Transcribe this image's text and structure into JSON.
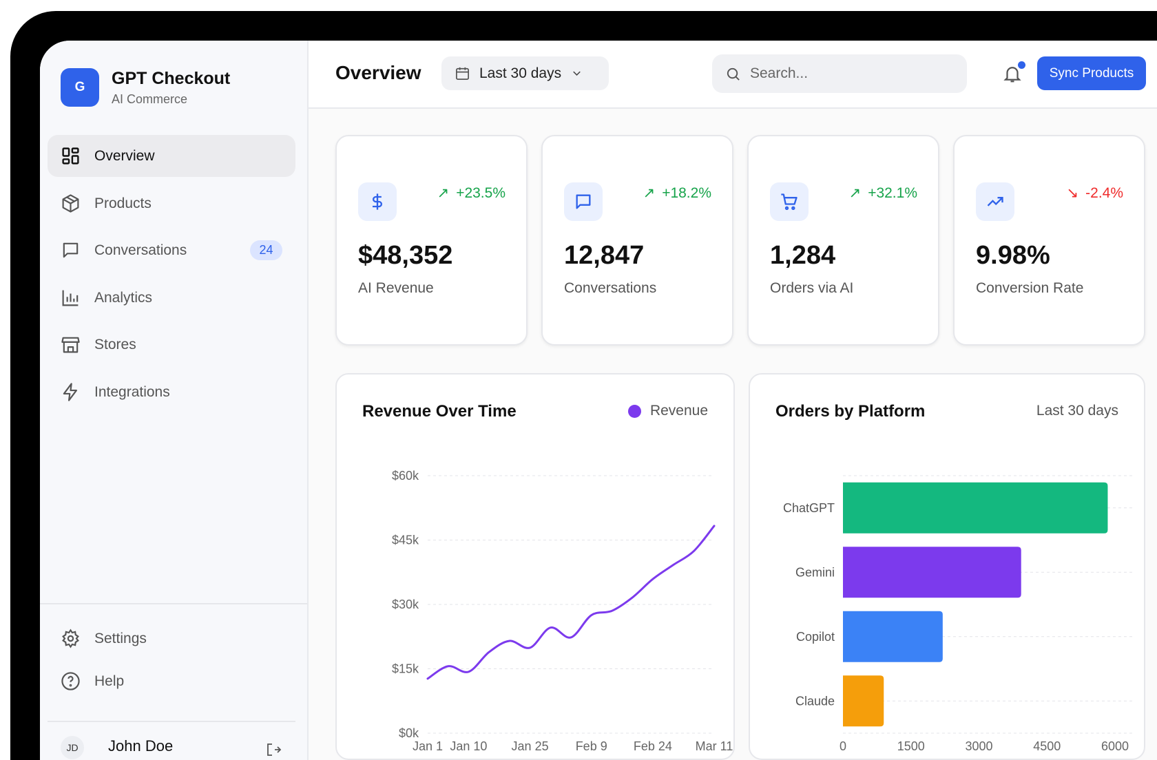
{
  "brand": {
    "logo_letter": "G",
    "name": "GPT Checkout",
    "subtitle": "AI Commerce"
  },
  "sidebar": {
    "items": [
      {
        "label": "Overview",
        "icon": "grid-icon",
        "active": true
      },
      {
        "label": "Products",
        "icon": "package-icon"
      },
      {
        "label": "Conversations",
        "icon": "message-icon",
        "badge": "24"
      },
      {
        "label": "Analytics",
        "icon": "bar-chart-icon"
      },
      {
        "label": "Stores",
        "icon": "store-icon"
      },
      {
        "label": "Integrations",
        "icon": "lightning-icon"
      }
    ],
    "footer": [
      {
        "label": "Settings",
        "icon": "gear-icon"
      },
      {
        "label": "Help",
        "icon": "help-circle-icon"
      }
    ],
    "user": {
      "initials": "JD",
      "name": "John Doe"
    }
  },
  "header": {
    "title": "Overview",
    "date_range": "Last 30 days",
    "search_placeholder": "Search...",
    "sync_label": "Sync Products"
  },
  "kpis": [
    {
      "value": "$48,352",
      "label": "AI Revenue",
      "change": "+23.5%",
      "trend": "up",
      "icon": "dollar-icon"
    },
    {
      "value": "12,847",
      "label": "Conversations",
      "change": "+18.2%",
      "trend": "up",
      "icon": "message-icon"
    },
    {
      "value": "1,284",
      "label": "Orders via AI",
      "change": "+32.1%",
      "trend": "up",
      "icon": "cart-icon"
    },
    {
      "value": "9.98%",
      "label": "Conversion Rate",
      "change": "-2.4%",
      "trend": "down",
      "icon": "trending-up-icon"
    }
  ],
  "colors": {
    "accent": "#2f62ea",
    "up": "#16a34a",
    "down": "#ef2b2b",
    "revenue": "#7c3aed"
  },
  "chart_data": [
    {
      "type": "line",
      "title": "Revenue Over Time",
      "legend": [
        "Revenue"
      ],
      "legend_placement": "top-right",
      "y_ticks": [
        "$0k",
        "$15k",
        "$30k",
        "$45k",
        "$60k"
      ],
      "ylim": [
        0,
        60
      ],
      "x_ticks": [
        "Jan 1",
        "Jan 10",
        "Jan 25",
        "Feb 9",
        "Feb 24",
        "Mar 11"
      ],
      "x_tick_index": [
        0,
        2,
        5,
        8,
        11,
        14
      ],
      "series": [
        {
          "name": "Revenue",
          "color": "#7c3aed",
          "values": [
            12.7,
            15.6,
            14.3,
            18.9,
            21.5,
            19.9,
            24.6,
            22.3,
            27.5,
            28.5,
            31.6,
            35.9,
            39.2,
            42.4,
            48.3
          ]
        }
      ],
      "units": "thousands USD"
    },
    {
      "type": "bar",
      "orientation": "horizontal",
      "title": "Orders by Platform",
      "subtitle": "Last 30 days",
      "categories": [
        "ChatGPT",
        "Gemini",
        "Copilot",
        "Claude"
      ],
      "values": [
        5840,
        3930,
        2200,
        900
      ],
      "colors": [
        "#14b87f",
        "#7c3aed",
        "#3b82f6",
        "#f59e0b"
      ],
      "x_ticks": [
        "0",
        "1500",
        "3000",
        "4500",
        "6000"
      ],
      "xlim": [
        0,
        6000
      ]
    }
  ]
}
